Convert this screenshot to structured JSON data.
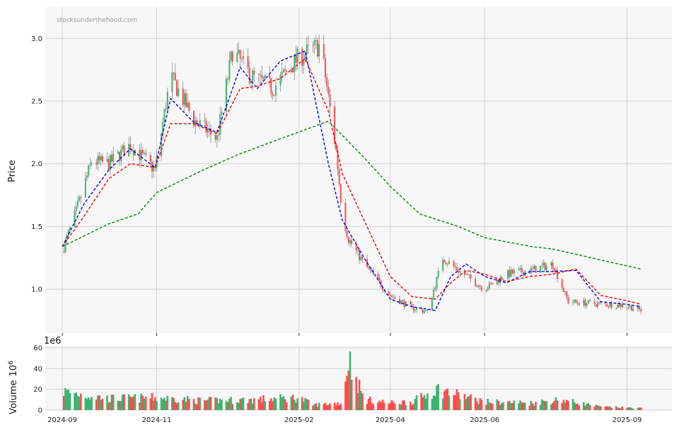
{
  "watermark": "stocksunderthehood.com",
  "colors": {
    "up": "#3cb371",
    "down": "#ff4d4d",
    "ma_short": "#0000ee",
    "ma_mid": "#ee0000",
    "ma_long": "#008800",
    "panel_bg": "#f7f7f7",
    "grid": "#d0d0d0"
  },
  "chart_data": [
    {
      "type": "candlestick",
      "ylabel": "Price",
      "ylim": [
        0.65,
        3.25
      ],
      "yticks": [
        1.0,
        1.5,
        2.0,
        2.5,
        3.0
      ],
      "ytick_labels": [
        "1.0",
        "1.5",
        "2.0",
        "2.5",
        "3.0"
      ],
      "x_range": [
        "2024-08-21",
        "2025-09-30"
      ],
      "grid": true,
      "series": [
        {
          "name": "",
          "kind": "moving-average-short",
          "color": "#0000ee",
          "style": "dashed",
          "x": [
            "2024-09-01",
            "2024-09-15",
            "2024-10-01",
            "2024-10-15",
            "2024-10-31",
            "2024-11-10",
            "2024-11-25",
            "2024-12-10",
            "2024-12-25",
            "2025-01-05",
            "2025-01-20",
            "2025-02-05",
            "2025-02-20",
            "2025-03-01",
            "2025-03-15",
            "2025-04-01",
            "2025-04-15",
            "2025-04-30",
            "2025-05-10",
            "2025-05-20",
            "2025-06-01",
            "2025-06-15",
            "2025-06-30",
            "2025-07-15",
            "2025-07-30",
            "2025-08-15",
            "2025-08-31",
            "2025-09-10"
          ],
          "y": [
            1.34,
            1.68,
            1.95,
            2.12,
            1.97,
            2.52,
            2.33,
            2.25,
            2.77,
            2.6,
            2.82,
            2.9,
            2.0,
            1.55,
            1.25,
            0.92,
            0.86,
            0.83,
            1.1,
            1.2,
            1.1,
            1.05,
            1.14,
            1.14,
            1.15,
            0.9,
            0.88,
            0.86
          ]
        },
        {
          "name": "",
          "kind": "moving-average-mid",
          "color": "#ee0000",
          "style": "dashed",
          "x": [
            "2024-09-01",
            "2024-09-15",
            "2024-10-01",
            "2024-10-15",
            "2024-10-31",
            "2024-11-10",
            "2024-11-25",
            "2024-12-10",
            "2024-12-25",
            "2025-01-05",
            "2025-01-20",
            "2025-02-05",
            "2025-02-20",
            "2025-03-01",
            "2025-03-15",
            "2025-04-01",
            "2025-04-15",
            "2025-04-30",
            "2025-05-10",
            "2025-05-20",
            "2025-06-01",
            "2025-06-15",
            "2025-06-30",
            "2025-07-15",
            "2025-07-30",
            "2025-08-15",
            "2025-08-31",
            "2025-09-10"
          ],
          "y": [
            1.34,
            1.58,
            1.88,
            2.0,
            1.97,
            2.32,
            2.32,
            2.24,
            2.6,
            2.62,
            2.68,
            2.84,
            2.42,
            1.92,
            1.55,
            1.1,
            0.94,
            0.92,
            1.05,
            1.15,
            1.12,
            1.06,
            1.1,
            1.12,
            1.16,
            0.95,
            0.91,
            0.88
          ]
        },
        {
          "name": "",
          "kind": "moving-average-long",
          "color": "#008800",
          "style": "dashed",
          "x": [
            "2024-09-01",
            "2024-10-01",
            "2024-10-20",
            "2024-11-01",
            "2024-12-01",
            "2024-12-25",
            "2025-01-20",
            "2025-02-20",
            "2025-03-15",
            "2025-04-01",
            "2025-04-20",
            "2025-05-15",
            "2025-06-01",
            "2025-07-01",
            "2025-07-15",
            "2025-09-10"
          ],
          "y": [
            1.34,
            1.52,
            1.6,
            1.77,
            1.95,
            2.08,
            2.2,
            2.34,
            2.05,
            1.82,
            1.6,
            1.5,
            1.41,
            1.34,
            1.32,
            1.16
          ]
        }
      ]
    },
    {
      "type": "bar",
      "ylabel": "Volume",
      "ylabel_exponent": "6",
      "offset_text": "1e6",
      "ylim": [
        0,
        62
      ],
      "yticks": [
        0,
        20,
        40,
        60
      ],
      "ytick_labels": [
        "0",
        "20",
        "40",
        "60"
      ],
      "grid": true
    }
  ],
  "x_axis": {
    "ticks": [
      "2024-09-01",
      "2024-11-01",
      "2025-02-01",
      "2025-04-01",
      "2025-06-01",
      "2025-09-01"
    ],
    "tick_labels": [
      "2024-09",
      "2024-11",
      "2025-02",
      "2025-04",
      "2025-06",
      "2025-09"
    ]
  },
  "price_path": {
    "x": [
      "2024-09-01",
      "2024-09-10",
      "2024-09-20",
      "2024-10-01",
      "2024-10-15",
      "2024-10-31",
      "2024-11-10",
      "2024-11-25",
      "2024-12-10",
      "2024-12-20",
      "2025-01-01",
      "2025-01-15",
      "2025-02-01",
      "2025-02-15",
      "2025-02-25",
      "2025-03-01",
      "2025-03-05",
      "2025-03-15",
      "2025-04-01",
      "2025-04-15",
      "2025-04-25",
      "2025-05-05",
      "2025-05-15",
      "2025-06-01",
      "2025-06-15",
      "2025-07-01",
      "2025-07-15",
      "2025-07-25",
      "2025-08-15",
      "2025-08-31",
      "2025-09-10"
    ],
    "y": [
      1.3,
      1.62,
      2.02,
      2.0,
      2.15,
      1.95,
      2.7,
      2.35,
      2.2,
      2.9,
      2.7,
      2.6,
      2.85,
      2.95,
      2.1,
      1.6,
      1.4,
      1.2,
      0.95,
      0.85,
      0.82,
      1.25,
      1.15,
      1.0,
      1.12,
      1.15,
      1.2,
      0.9,
      0.88,
      0.87,
      0.83
    ]
  },
  "volume_path": {
    "x": [
      "2024-09-01",
      "2024-10-01",
      "2024-11-01",
      "2024-12-01",
      "2025-01-01",
      "2025-02-01",
      "2025-02-10",
      "2025-03-01",
      "2025-03-05",
      "2025-03-15",
      "2025-04-01",
      "2025-04-15",
      "2025-05-01",
      "2025-06-01",
      "2025-07-01",
      "2025-07-20",
      "2025-08-15",
      "2025-09-10"
    ],
    "y": [
      18,
      11,
      12,
      9,
      10,
      12,
      5,
      7,
      50,
      10,
      7,
      8,
      20,
      8,
      7,
      10,
      3,
      2
    ]
  }
}
